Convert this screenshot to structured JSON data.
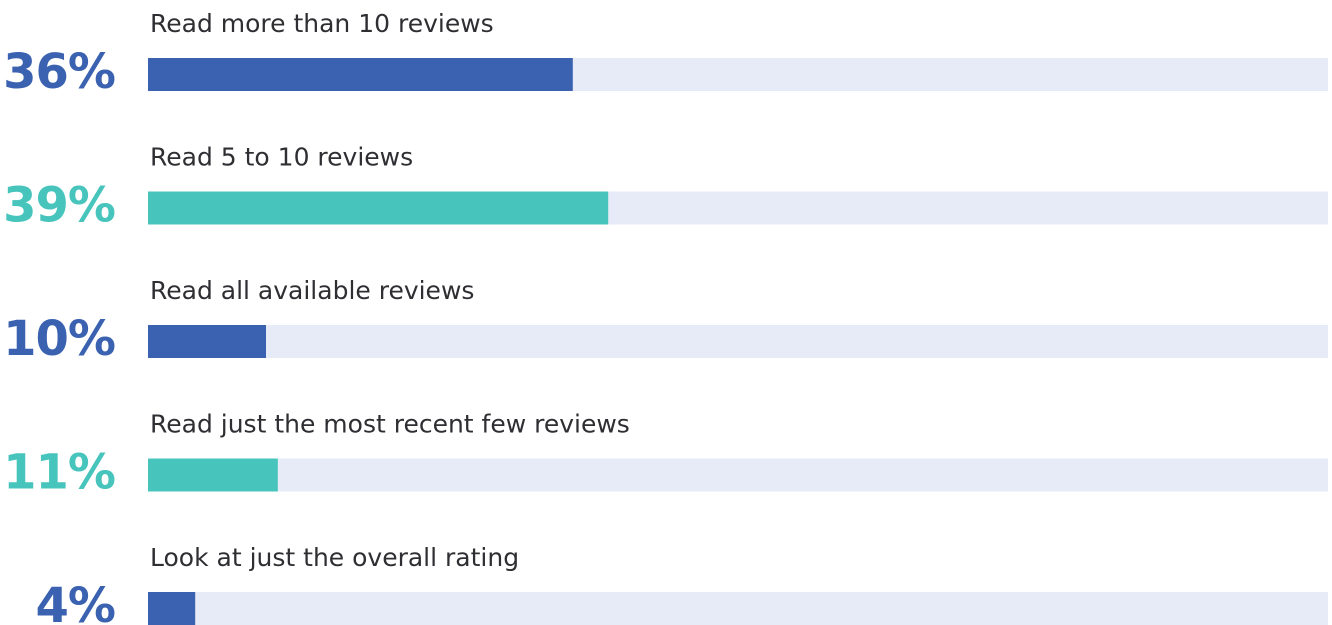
{
  "chart_data": {
    "type": "bar",
    "orientation": "horizontal",
    "categories": [
      "Read more than 10 reviews",
      "Read 5 to 10 reviews",
      "Read all available reviews",
      "Read just the most recent few reviews",
      "Look at just the overall rating"
    ],
    "values": [
      36,
      39,
      10,
      11,
      4
    ],
    "value_labels": [
      "36%",
      "39%",
      "10%",
      "11%",
      "4%"
    ],
    "colors": [
      "#3a62b0",
      "#47c4bb",
      "#3a62b0",
      "#47c4bb",
      "#3a62b0"
    ],
    "track_color": "#e6ebf7",
    "xlim": [
      0,
      100
    ]
  }
}
